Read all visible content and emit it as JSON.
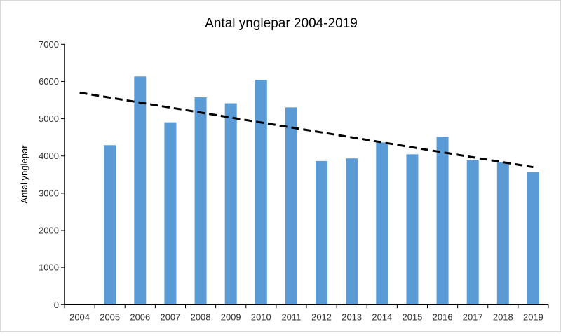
{
  "chart_data": {
    "type": "bar",
    "title": "Antal ynglepar 2004-2019",
    "xlabel": "",
    "ylabel": "Antal ynglepar",
    "ylim": [
      0,
      7000
    ],
    "yticks": [
      0,
      1000,
      2000,
      3000,
      4000,
      5000,
      6000,
      7000
    ],
    "grid": false,
    "categories": [
      "2004",
      "2005",
      "2006",
      "2007",
      "2008",
      "2009",
      "2010",
      "2011",
      "2012",
      "2013",
      "2014",
      "2015",
      "2016",
      "2017",
      "2018",
      "2019"
    ],
    "values": [
      null,
      4290,
      6135,
      4905,
      5575,
      5415,
      6045,
      5305,
      3865,
      3935,
      4365,
      4045,
      4515,
      3895,
      3825,
      3570
    ],
    "bar_color": "#5b9bd5",
    "trendline": {
      "type": "linear",
      "style": "dashed",
      "color": "#000000",
      "start": {
        "x": "2004",
        "y": 5700
      },
      "end": {
        "x": "2019",
        "y": 3700
      }
    }
  }
}
